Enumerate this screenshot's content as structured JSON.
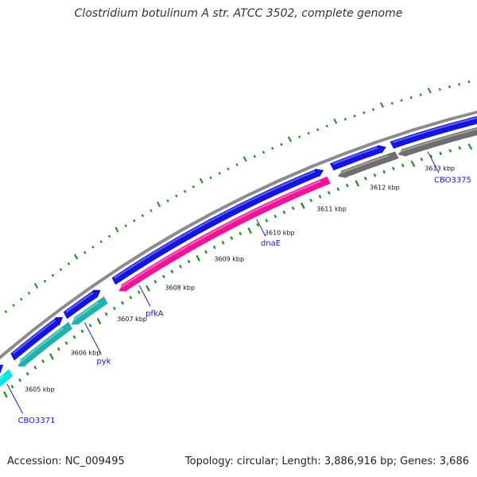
{
  "map": {
    "title": "Clostridium botulinum A str. ATCC 3502, complete genome",
    "accession": "Accession: NC_009495",
    "summary": "Topology: circular; Length: 3,886,916 bp; Genes: 3,686"
  },
  "colors": {
    "backbone": "#8c8c8c",
    "ticks": "#1e8c1e",
    "forward_feature": "#1515e0",
    "cyan_feature": "#00e6e6",
    "teal_feature": "#20b2aa",
    "magenta_feature": "#f0149a",
    "gray_feature": "#6e6e6e",
    "label_line": "#1a1ad2"
  },
  "scale_labels": [
    "3605 kbp",
    "3606 kbp",
    "3607 kbp",
    "3608 kbp",
    "3609 kbp",
    "3610 kbp",
    "3611 kbp",
    "3612 kbp",
    "3613 kbp"
  ],
  "features": [
    {
      "strand": "forward",
      "color": "forward_feature"
    },
    {
      "strand": "forward",
      "color": "forward_feature"
    },
    {
      "strand": "forward",
      "color": "forward_feature"
    },
    {
      "strand": "forward",
      "color": "forward_feature"
    },
    {
      "strand": "forward",
      "color": "forward_feature"
    },
    {
      "strand": "forward",
      "color": "forward_feature"
    },
    {
      "strand": "reverse",
      "color": "cyan_feature"
    },
    {
      "strand": "reverse",
      "color": "teal_feature"
    },
    {
      "strand": "reverse",
      "color": "teal_feature"
    },
    {
      "strand": "reverse",
      "color": "magenta_feature"
    },
    {
      "strand": "reverse",
      "color": "gray_feature"
    },
    {
      "strand": "reverse",
      "color": "gray_feature"
    }
  ],
  "gene_labels": [
    {
      "text": "CBO3371"
    },
    {
      "text": "pyk"
    },
    {
      "text": "pfkA"
    },
    {
      "text": "dnaE"
    },
    {
      "text": "CBO3375"
    }
  ]
}
